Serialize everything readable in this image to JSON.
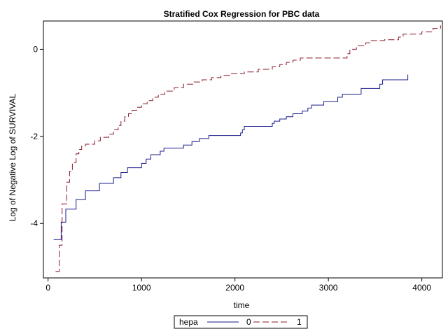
{
  "chart_data": {
    "type": "line",
    "title": "Stratified Cox Regression for PBC data",
    "xlabel": "time",
    "ylabel": "Log of Negative Log of SURVIVAL",
    "xlim": [
      -50,
      4220
    ],
    "ylim": [
      -5.25,
      0.65
    ],
    "xticks": [
      0,
      1000,
      2000,
      3000,
      4000
    ],
    "yticks": [
      -4,
      -2,
      0
    ],
    "xtick_labels": [
      "0",
      "1000",
      "2000",
      "3000",
      "4000"
    ],
    "ytick_labels": [
      "-4",
      "-2",
      "0"
    ],
    "grid": false,
    "step": true,
    "legend": {
      "title": "hepa",
      "placement": "bottom-center",
      "entries": [
        "0",
        "1"
      ]
    },
    "series": [
      {
        "name": "0",
        "color": "#1a1a8c",
        "dash": "solid",
        "x": [
          60,
          140,
          190,
          300,
          400,
          550,
          700,
          780,
          850,
          1000,
          1050,
          1100,
          1200,
          1240,
          1450,
          1540,
          1620,
          1720,
          2060,
          2080,
          2100,
          2400,
          2420,
          2480,
          2550,
          2620,
          2720,
          2780,
          2820,
          2950,
          3100,
          3150,
          3350,
          3550,
          3580,
          3850
        ],
        "y": [
          -4.37,
          -3.97,
          -3.67,
          -3.45,
          -3.25,
          -3.08,
          -2.95,
          -2.83,
          -2.72,
          -2.62,
          -2.52,
          -2.42,
          -2.34,
          -2.27,
          -2.2,
          -2.12,
          -2.05,
          -1.98,
          -1.92,
          -1.85,
          -1.77,
          -1.7,
          -1.65,
          -1.6,
          -1.55,
          -1.48,
          -1.42,
          -1.35,
          -1.28,
          -1.2,
          -1.1,
          -1.03,
          -0.9,
          -0.8,
          -0.7,
          -0.58
        ]
      },
      {
        "name": "1",
        "color": "#8b1a2b",
        "dash": "dashed",
        "x": [
          80,
          120,
          150,
          200,
          230,
          260,
          300,
          330,
          360,
          400,
          500,
          560,
          650,
          700,
          750,
          780,
          820,
          860,
          900,
          950,
          1000,
          1060,
          1120,
          1180,
          1250,
          1350,
          1450,
          1550,
          1650,
          1750,
          1850,
          1950,
          2100,
          2250,
          2400,
          2480,
          2550,
          2620,
          2700,
          3200,
          3230,
          3300,
          3400,
          3450,
          3600,
          3750,
          3800,
          4000,
          4120,
          4200
        ],
        "y": [
          -5.1,
          -4.5,
          -3.55,
          -3.05,
          -2.8,
          -2.6,
          -2.4,
          -2.3,
          -2.22,
          -2.18,
          -2.1,
          -2.02,
          -1.95,
          -1.85,
          -1.75,
          -1.65,
          -1.55,
          -1.48,
          -1.4,
          -1.33,
          -1.25,
          -1.18,
          -1.1,
          -1.03,
          -0.96,
          -0.88,
          -0.8,
          -0.75,
          -0.7,
          -0.65,
          -0.6,
          -0.56,
          -0.52,
          -0.46,
          -0.4,
          -0.35,
          -0.3,
          -0.25,
          -0.2,
          -0.1,
          0.0,
          0.08,
          0.15,
          0.2,
          0.22,
          0.28,
          0.35,
          0.4,
          0.48,
          0.55
        ]
      }
    ]
  }
}
